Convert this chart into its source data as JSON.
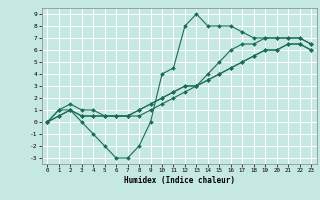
{
  "xlabel": "Humidex (Indice chaleur)",
  "ylabel": "",
  "background_color": "#c6e8e2",
  "grid_color": "#ffffff",
  "line_color": "#1a6b5a",
  "xlim": [
    -0.5,
    23.5
  ],
  "ylim": [
    -3.5,
    9.5
  ],
  "xticks": [
    0,
    1,
    2,
    3,
    4,
    5,
    6,
    7,
    8,
    9,
    10,
    11,
    12,
    13,
    14,
    15,
    16,
    17,
    18,
    19,
    20,
    21,
    22,
    23
  ],
  "yticks": [
    -3,
    -2,
    -1,
    0,
    1,
    2,
    3,
    4,
    5,
    6,
    7,
    8,
    9
  ],
  "curves": [
    {
      "x": [
        0,
        1,
        2,
        3,
        4,
        5,
        6,
        7,
        8,
        9,
        10,
        11,
        12,
        13,
        14,
        15,
        16,
        17,
        18,
        19,
        20,
        21,
        22,
        23
      ],
      "y": [
        0,
        1,
        1,
        0,
        -1,
        -2,
        -3,
        -3,
        -2,
        0,
        4,
        4.5,
        8,
        9,
        8,
        8,
        8,
        7.5,
        7,
        7,
        7,
        7,
        7,
        6.5
      ]
    },
    {
      "x": [
        0,
        1,
        2,
        3,
        4,
        5,
        6,
        7,
        8,
        9,
        10,
        11,
        12,
        13,
        14,
        15,
        16,
        17,
        18,
        19,
        20,
        21,
        22,
        23
      ],
      "y": [
        0,
        1,
        1.5,
        1,
        1,
        0.5,
        0.5,
        0.5,
        1,
        1.5,
        2,
        2.5,
        3,
        3,
        4,
        5,
        6,
        6.5,
        6.5,
        7,
        7,
        7,
        7,
        6.5
      ]
    },
    {
      "x": [
        0,
        1,
        2,
        3,
        4,
        5,
        6,
        7,
        8,
        9,
        10,
        11,
        12,
        13,
        14,
        15,
        16,
        17,
        18,
        19,
        20,
        21,
        22,
        23
      ],
      "y": [
        0,
        0.5,
        1,
        0.5,
        0.5,
        0.5,
        0.5,
        0.5,
        0.5,
        1,
        1.5,
        2,
        2.5,
        3,
        3.5,
        4,
        4.5,
        5,
        5.5,
        6,
        6,
        6.5,
        6.5,
        6
      ]
    },
    {
      "x": [
        0,
        1,
        2,
        3,
        4,
        5,
        6,
        7,
        8,
        9,
        10,
        11,
        12,
        13,
        14,
        15,
        16,
        17,
        18,
        19,
        20,
        21,
        22,
        23
      ],
      "y": [
        0,
        0.5,
        1,
        0.5,
        0.5,
        0.5,
        0.5,
        0.5,
        1,
        1.5,
        2,
        2.5,
        3,
        3,
        3.5,
        4,
        4.5,
        5,
        5.5,
        6,
        6,
        6.5,
        6.5,
        6
      ]
    }
  ]
}
